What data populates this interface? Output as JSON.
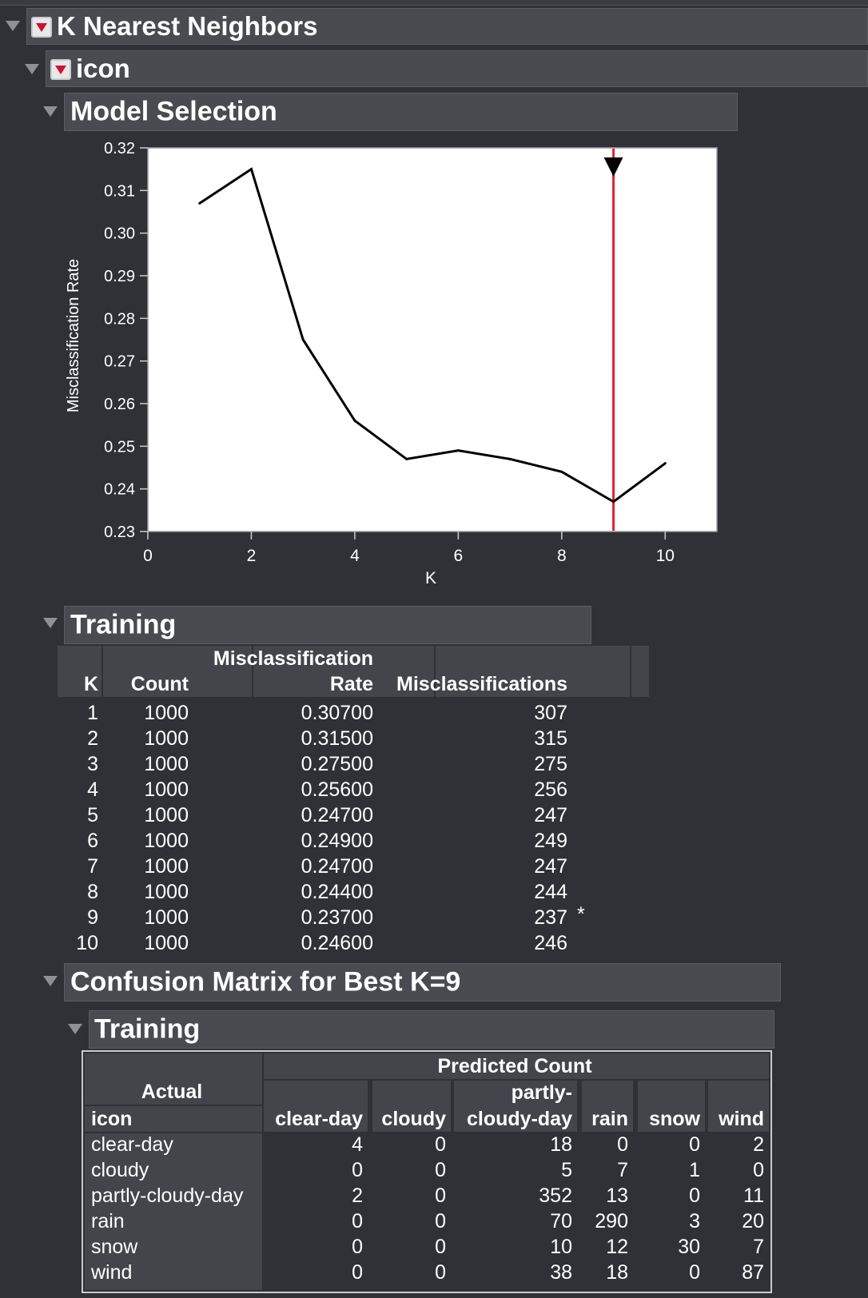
{
  "report": {
    "title": "K Nearest Neighbors",
    "subtitle": "icon"
  },
  "model_selection": {
    "title": "Model Selection"
  },
  "chart_data": {
    "type": "line",
    "x": [
      1,
      2,
      3,
      4,
      5,
      6,
      7,
      8,
      9,
      10
    ],
    "series": [
      {
        "values": [
          0.307,
          0.315,
          0.275,
          0.256,
          0.247,
          0.249,
          0.247,
          0.244,
          0.237,
          0.246
        ]
      }
    ],
    "xlabel": "K",
    "ylabel": "Misclassification Rate",
    "xlim": [
      0,
      11
    ],
    "ylim": [
      0.23,
      0.32
    ],
    "xticks": [
      "0",
      "2",
      "4",
      "6",
      "8",
      "10"
    ],
    "yticks": [
      "0.23",
      "0.24",
      "0.25",
      "0.26",
      "0.27",
      "0.28",
      "0.29",
      "0.30",
      "0.31",
      "0.32"
    ],
    "xtick_values": [
      0,
      2,
      4,
      6,
      8,
      10
    ],
    "ytick_values": [
      0.23,
      0.24,
      0.25,
      0.26,
      0.27,
      0.28,
      0.29,
      0.3,
      0.31,
      0.32
    ],
    "best_k_marker": 9,
    "line_color": "#000000",
    "marker_color": "#e0242f",
    "grid": false
  },
  "training": {
    "title": "Training",
    "headers": {
      "k": "K",
      "count": "Count",
      "rate_line1": "Misclassification",
      "rate_line2": "Rate",
      "misclassifications": "Misclassifications"
    },
    "rows": [
      {
        "k": "1",
        "count": "1000",
        "rate": "0.30700",
        "mis": "307",
        "flag": ""
      },
      {
        "k": "2",
        "count": "1000",
        "rate": "0.31500",
        "mis": "315",
        "flag": ""
      },
      {
        "k": "3",
        "count": "1000",
        "rate": "0.27500",
        "mis": "275",
        "flag": ""
      },
      {
        "k": "4",
        "count": "1000",
        "rate": "0.25600",
        "mis": "256",
        "flag": ""
      },
      {
        "k": "5",
        "count": "1000",
        "rate": "0.24700",
        "mis": "247",
        "flag": ""
      },
      {
        "k": "6",
        "count": "1000",
        "rate": "0.24900",
        "mis": "249",
        "flag": ""
      },
      {
        "k": "7",
        "count": "1000",
        "rate": "0.24700",
        "mis": "247",
        "flag": ""
      },
      {
        "k": "8",
        "count": "1000",
        "rate": "0.24400",
        "mis": "244",
        "flag": ""
      },
      {
        "k": "9",
        "count": "1000",
        "rate": "0.23700",
        "mis": "237",
        "flag": "*"
      },
      {
        "k": "10",
        "count": "1000",
        "rate": "0.24600",
        "mis": "246",
        "flag": ""
      }
    ]
  },
  "confusion": {
    "title": "Confusion Matrix for Best K=9",
    "sub_title": "Training",
    "predicted_label": "Predicted Count",
    "actual_label": "Actual",
    "icon_label": "icon",
    "columns": [
      {
        "line1": "",
        "line2": "clear-day"
      },
      {
        "line1": "",
        "line2": "cloudy"
      },
      {
        "line1": "partly-",
        "line2": "cloudy-day"
      },
      {
        "line1": "",
        "line2": "rain"
      },
      {
        "line1": "",
        "line2": "snow"
      },
      {
        "line1": "",
        "line2": "wind"
      }
    ],
    "rows": [
      {
        "label": "clear-day",
        "values": [
          "4",
          "0",
          "18",
          "0",
          "0",
          "2"
        ]
      },
      {
        "label": "cloudy",
        "values": [
          "0",
          "0",
          "5",
          "7",
          "1",
          "0"
        ]
      },
      {
        "label": "partly-cloudy-day",
        "values": [
          "2",
          "0",
          "352",
          "13",
          "0",
          "11"
        ]
      },
      {
        "label": "rain",
        "values": [
          "0",
          "0",
          "70",
          "290",
          "3",
          "20"
        ]
      },
      {
        "label": "snow",
        "values": [
          "0",
          "0",
          "10",
          "12",
          "30",
          "7"
        ]
      },
      {
        "label": "wind",
        "values": [
          "0",
          "0",
          "38",
          "18",
          "0",
          "87"
        ]
      }
    ]
  }
}
